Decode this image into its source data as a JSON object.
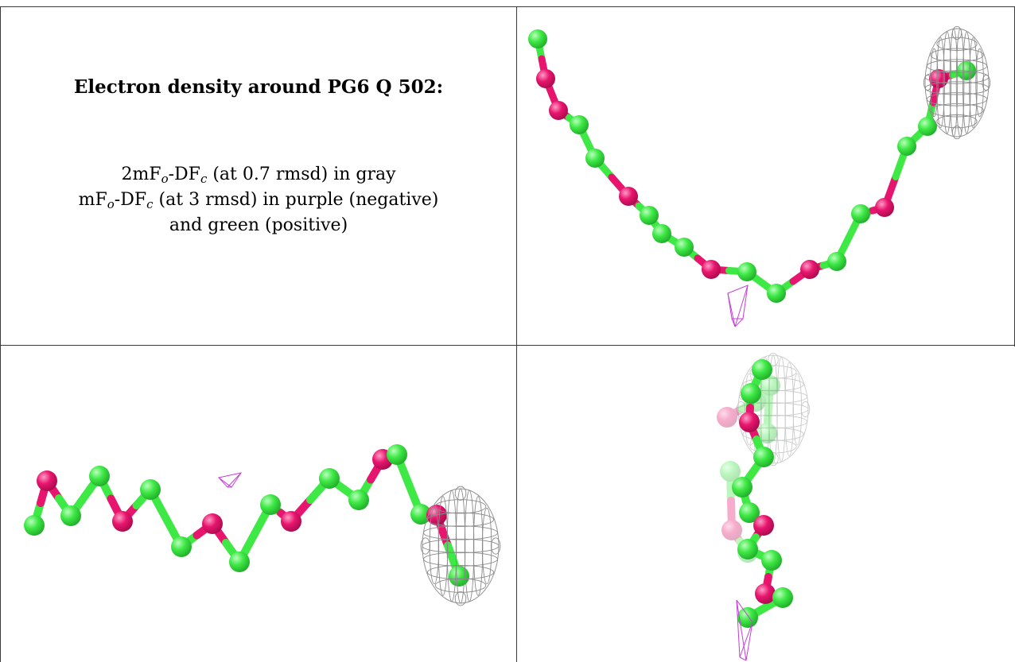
{
  "caption": {
    "title": "Electron density around PG6 Q 502:",
    "line1": {
      "pre": "2mF",
      "sub1": "o",
      "mid": "-DF",
      "sub2": "c",
      "post": " (at 0.7 rmsd) in gray"
    },
    "line2": {
      "pre": "mF",
      "sub1": "o",
      "mid": "-DF",
      "sub2": "c",
      "post": " (at 3 rmsd) in purple (negative)"
    },
    "line3": "and green (positive)"
  },
  "colors": {
    "carbon": "#3ee845",
    "oxygen": "#e8156e",
    "mesh_2fofc": "#8a8a8a",
    "mesh_negative": "#c43fd8",
    "border": "#3a3a3a"
  },
  "views": [
    "view-top-right",
    "view-bottom-left",
    "view-bottom-right"
  ]
}
